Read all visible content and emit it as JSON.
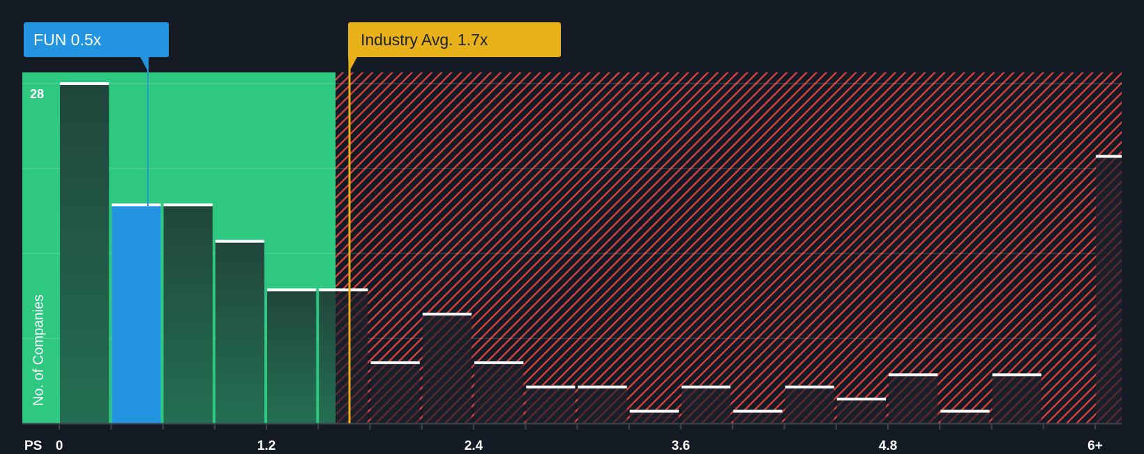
{
  "callouts": {
    "company": {
      "label": "FUN 0.5x",
      "ticker": "FUN",
      "value": 0.5,
      "color": "#2394df"
    },
    "industry": {
      "label": "Industry Avg. 1.7x",
      "value": 1.7,
      "color": "#e9b119"
    }
  },
  "axis": {
    "x_title": "PS",
    "y_title": "No. of Companies",
    "y_max_label": "28",
    "x_ticks": [
      {
        "label": "0",
        "value": 0
      },
      {
        "label": "1.2",
        "value": 1.2
      },
      {
        "label": "2.4",
        "value": 2.4
      },
      {
        "label": "3.6",
        "value": 3.6
      },
      {
        "label": "4.8",
        "value": 4.8
      },
      {
        "label": "6+",
        "value": 6.0
      }
    ]
  },
  "colors": {
    "background": "#151b24",
    "fair_zone": "#2ec880",
    "over_zone_hatch": "#d8413f",
    "bar_dark_top": "#21463c",
    "bar_dark_bottom": "#236f52",
    "highlight_bar": "#2394df",
    "bar_cap": "#ffffff",
    "gridline": "rgba(255,255,255,0.12)",
    "axis": "#3d4450"
  },
  "chart_data": {
    "type": "bar",
    "title": "Price-to-Sales (PS) distribution of industry peers",
    "xlabel": "PS",
    "ylabel": "No. of Companies",
    "bin_width": 0.3,
    "categories": [
      "0-0.3",
      "0.3-0.6",
      "0.6-0.9",
      "0.9-1.2",
      "1.2-1.5",
      "1.5-1.8",
      "1.8-2.1",
      "2.1-2.4",
      "2.4-2.7",
      "2.7-3.0",
      "3.0-3.3",
      "3.3-3.6",
      "3.6-3.9",
      "3.9-4.2",
      "4.2-4.5",
      "4.5-4.8",
      "4.8-5.1",
      "5.1-5.4",
      "5.4-5.7",
      "5.7-6.0",
      "6+"
    ],
    "values": [
      28,
      18,
      18,
      15,
      11,
      11,
      5,
      9,
      5,
      3,
      3,
      1,
      3,
      1,
      3,
      2,
      4,
      1,
      4,
      0,
      22
    ],
    "highlight_index": 1,
    "ylim": [
      0,
      28
    ],
    "y_gridlines": [
      7,
      14,
      21,
      28
    ],
    "x_tick_labels": [
      "0",
      "1.2",
      "2.4",
      "3.6",
      "4.8",
      "6+"
    ],
    "annotations": [
      {
        "text": "FUN 0.5x",
        "x": 0.5
      },
      {
        "text": "Industry Avg. 1.7x",
        "x": 1.7
      }
    ],
    "regions": [
      {
        "name": "fair",
        "from": 0,
        "to": 1.6,
        "color": "#2ec880"
      },
      {
        "name": "above",
        "from": 1.6,
        "to": 6.15,
        "color": "#d8413f",
        "pattern": "hatch"
      }
    ],
    "grid": true,
    "legend": "none"
  }
}
